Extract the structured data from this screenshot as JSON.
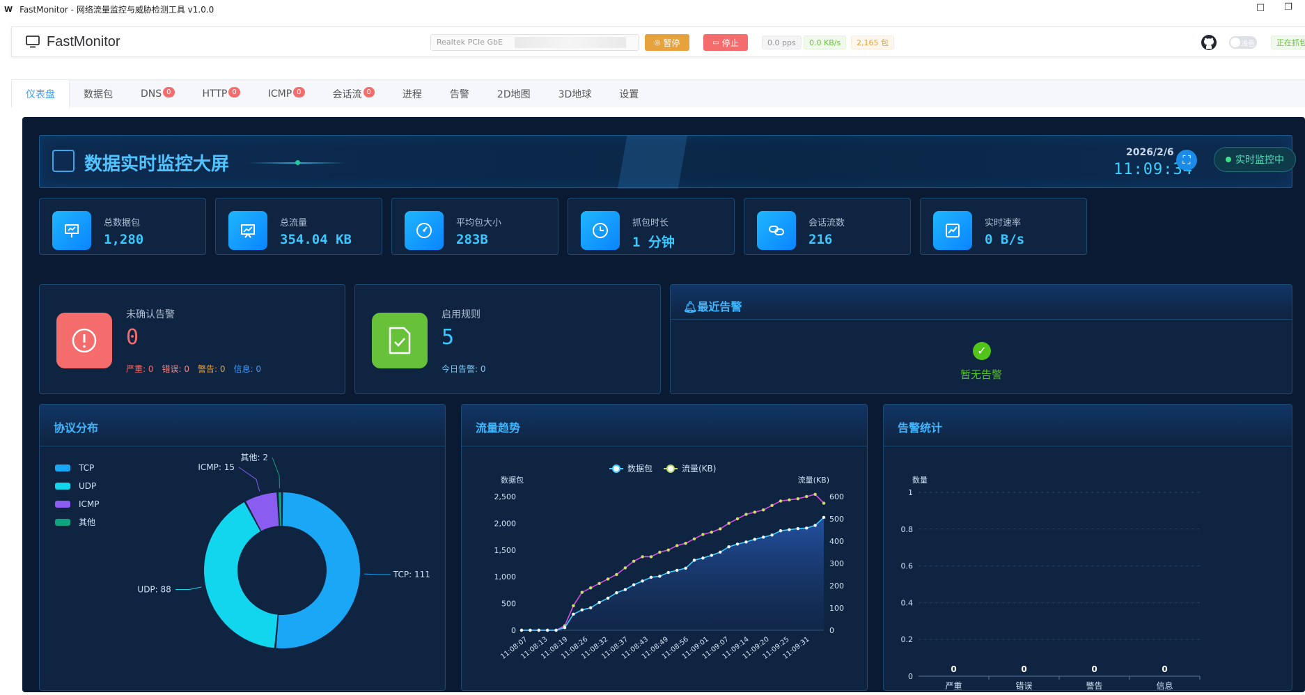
{
  "window": {
    "logo": "W",
    "title": "FastMonitor - 网络流量监控与威胁检测工具 v1.0.0",
    "maximize_glyph": "□",
    "restore_glyph": "❐"
  },
  "toolbar": {
    "app_name": "FastMonitor",
    "adapter": "Realtek PCIe GbE",
    "pause_label": "暂停",
    "stop_label": "停止",
    "pps": "0.0 pps",
    "rate": "0.0 KB/s",
    "packets": "2,165 包",
    "theme_label": "浅色",
    "status": "正在抓包"
  },
  "tabs": [
    {
      "label": "仪表盘",
      "badge": null
    },
    {
      "label": "数据包",
      "badge": null
    },
    {
      "label": "DNS",
      "badge": "0"
    },
    {
      "label": "HTTP",
      "badge": "0"
    },
    {
      "label": "ICMP",
      "badge": "0"
    },
    {
      "label": "会话流",
      "badge": "0"
    },
    {
      "label": "进程",
      "badge": null
    },
    {
      "label": "告警",
      "badge": null
    },
    {
      "label": "2D地图",
      "badge": null
    },
    {
      "label": "3D地球",
      "badge": null
    },
    {
      "label": "设置",
      "badge": null
    }
  ],
  "header": {
    "title": "数据实时监控大屏",
    "date": "2026/2/6",
    "time": "11:09:34",
    "live_label": "实时监控中"
  },
  "stats": [
    {
      "label": "总数据包",
      "value": "1,280",
      "icon": "presentation-icon"
    },
    {
      "label": "总流量",
      "value": "354.04 KB",
      "icon": "chart-board-icon"
    },
    {
      "label": "平均包大小",
      "value": "283B",
      "icon": "gauge-icon"
    },
    {
      "label": "抓包时长",
      "value": "1 分钟",
      "icon": "clock-icon"
    },
    {
      "label": "会话流数",
      "value": "216",
      "icon": "link-icon"
    },
    {
      "label": "实时速率",
      "value": "0 B/s",
      "icon": "trend-icon"
    }
  ],
  "alerts_card": {
    "label": "未确认告警",
    "value": "0",
    "severe": "严重: 0",
    "error": "错误: 0",
    "warning": "警告: 0",
    "info": "信息: 0"
  },
  "rules_card": {
    "label": "启用规则",
    "value": "5",
    "today": "今日告警: 0"
  },
  "recent_alerts": {
    "title": "最近告警",
    "empty": "暂无告警"
  },
  "panels": {
    "protocol": "协议分布",
    "traffic": "流量趋势",
    "alert_stats": "告警统计"
  },
  "colors": {
    "tcp": "#1aa7f5",
    "udp": "#12d6ee",
    "icmp": "#8a5cf0",
    "other": "#10a37f",
    "packets_line": "#3fd0ff",
    "traffic_line": "#d84fe0"
  },
  "chart_data": [
    {
      "type": "pie",
      "title": "协议分布",
      "legend": [
        "TCP",
        "UDP",
        "ICMP",
        "其他"
      ],
      "slices": [
        {
          "name": "TCP",
          "value": 111,
          "label": "TCP: 111"
        },
        {
          "name": "UDP",
          "value": 88,
          "label": "UDP: 88"
        },
        {
          "name": "ICMP",
          "value": 15,
          "label": "ICMP: 15"
        },
        {
          "name": "其他",
          "value": 2,
          "label": "其他: 2"
        }
      ]
    },
    {
      "type": "line",
      "title": "流量趋势",
      "x_ticks": [
        "11:08:07",
        "11:08:13",
        "11:08:19",
        "11:08:26",
        "11:08:32",
        "11:08:37",
        "11:08:43",
        "11:08:49",
        "11:08:56",
        "11:09:01",
        "11:09:07",
        "11:09:14",
        "11:09:20",
        "11:09:25",
        "11:09:31"
      ],
      "ylabel": "数据包",
      "y2label": "流量(KB)",
      "ylim": [
        0,
        2500
      ],
      "y_ticks": [
        "0",
        "500",
        "1,000",
        "1,500",
        "2,000",
        "2,500"
      ],
      "y2lim": [
        0,
        600
      ],
      "y2_ticks": [
        "0",
        "100",
        "200",
        "300",
        "400",
        "500",
        "600"
      ],
      "series": [
        {
          "name": "数据包",
          "axis": "left",
          "values": [
            0,
            0,
            0,
            0,
            0,
            50,
            300,
            380,
            420,
            520,
            600,
            700,
            760,
            850,
            920,
            990,
            1010,
            1080,
            1120,
            1160,
            1310,
            1350,
            1400,
            1460,
            1560,
            1610,
            1650,
            1700,
            1740,
            1780,
            1860,
            1880,
            1900,
            1910,
            1960,
            2110
          ]
        },
        {
          "name": "流量(KB)",
          "axis": "right",
          "values": [
            0,
            0,
            0,
            0,
            0,
            20,
            110,
            170,
            190,
            210,
            230,
            250,
            280,
            310,
            330,
            330,
            350,
            360,
            380,
            390,
            410,
            430,
            440,
            455,
            480,
            500,
            520,
            530,
            540,
            560,
            580,
            585,
            590,
            600,
            610,
            570
          ]
        }
      ]
    },
    {
      "type": "bar",
      "title": "告警统计",
      "categories": [
        "严重",
        "错误",
        "警告",
        "信息"
      ],
      "values": [
        0,
        0,
        0,
        0
      ],
      "ylabel": "数量",
      "ylim": [
        0,
        1
      ],
      "y_ticks": [
        "0",
        "0.2",
        "0.4",
        "0.6",
        "0.8",
        "1"
      ]
    }
  ]
}
